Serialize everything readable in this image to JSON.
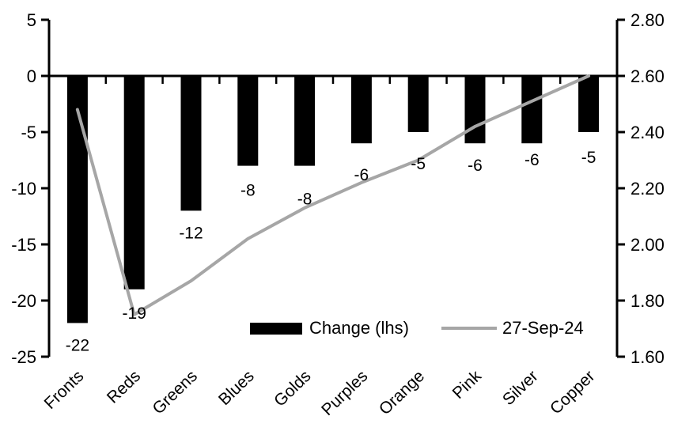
{
  "chart_data": {
    "type": "combo",
    "title": "",
    "categories": [
      "Fronts",
      "Reds",
      "Greens",
      "Blues",
      "Golds",
      "Purples",
      "Orange",
      "Pink",
      "Silver",
      "Copper"
    ],
    "series": [
      {
        "name": "Change (lhs)",
        "type": "bar",
        "axis": "left",
        "color": "#000000",
        "values": [
          -22,
          -19,
          -12,
          -8,
          -8,
          -6,
          -5,
          -6,
          -6,
          -5
        ],
        "data_labels": [
          "-22",
          "-19",
          "-12",
          "-8",
          "-8",
          "-6",
          "-5",
          "-6",
          "-6",
          "-5"
        ]
      },
      {
        "name": "27-Sep-24",
        "type": "line",
        "axis": "right",
        "color": "#a6a6a6",
        "values": [
          2.48,
          1.75,
          1.87,
          2.02,
          2.13,
          2.22,
          2.3,
          2.42,
          2.51,
          2.6
        ]
      }
    ],
    "left_axis": {
      "min": -25,
      "max": 5,
      "ticks": [
        "5",
        "0",
        "-5",
        "-10",
        "-15",
        "-20",
        "-25"
      ]
    },
    "right_axis": {
      "min": 1.6,
      "max": 2.8,
      "ticks": [
        "2.80",
        "2.60",
        "2.40",
        "2.20",
        "2.00",
        "1.80",
        "1.60"
      ]
    },
    "legend": {
      "position": "bottom-inside",
      "entries": [
        "Change (lhs)",
        "27-Sep-24"
      ]
    },
    "grid": false,
    "colors": {
      "bar": "#000000",
      "line": "#a6a6a6",
      "axis": "#000000",
      "background": "#ffffff"
    }
  }
}
